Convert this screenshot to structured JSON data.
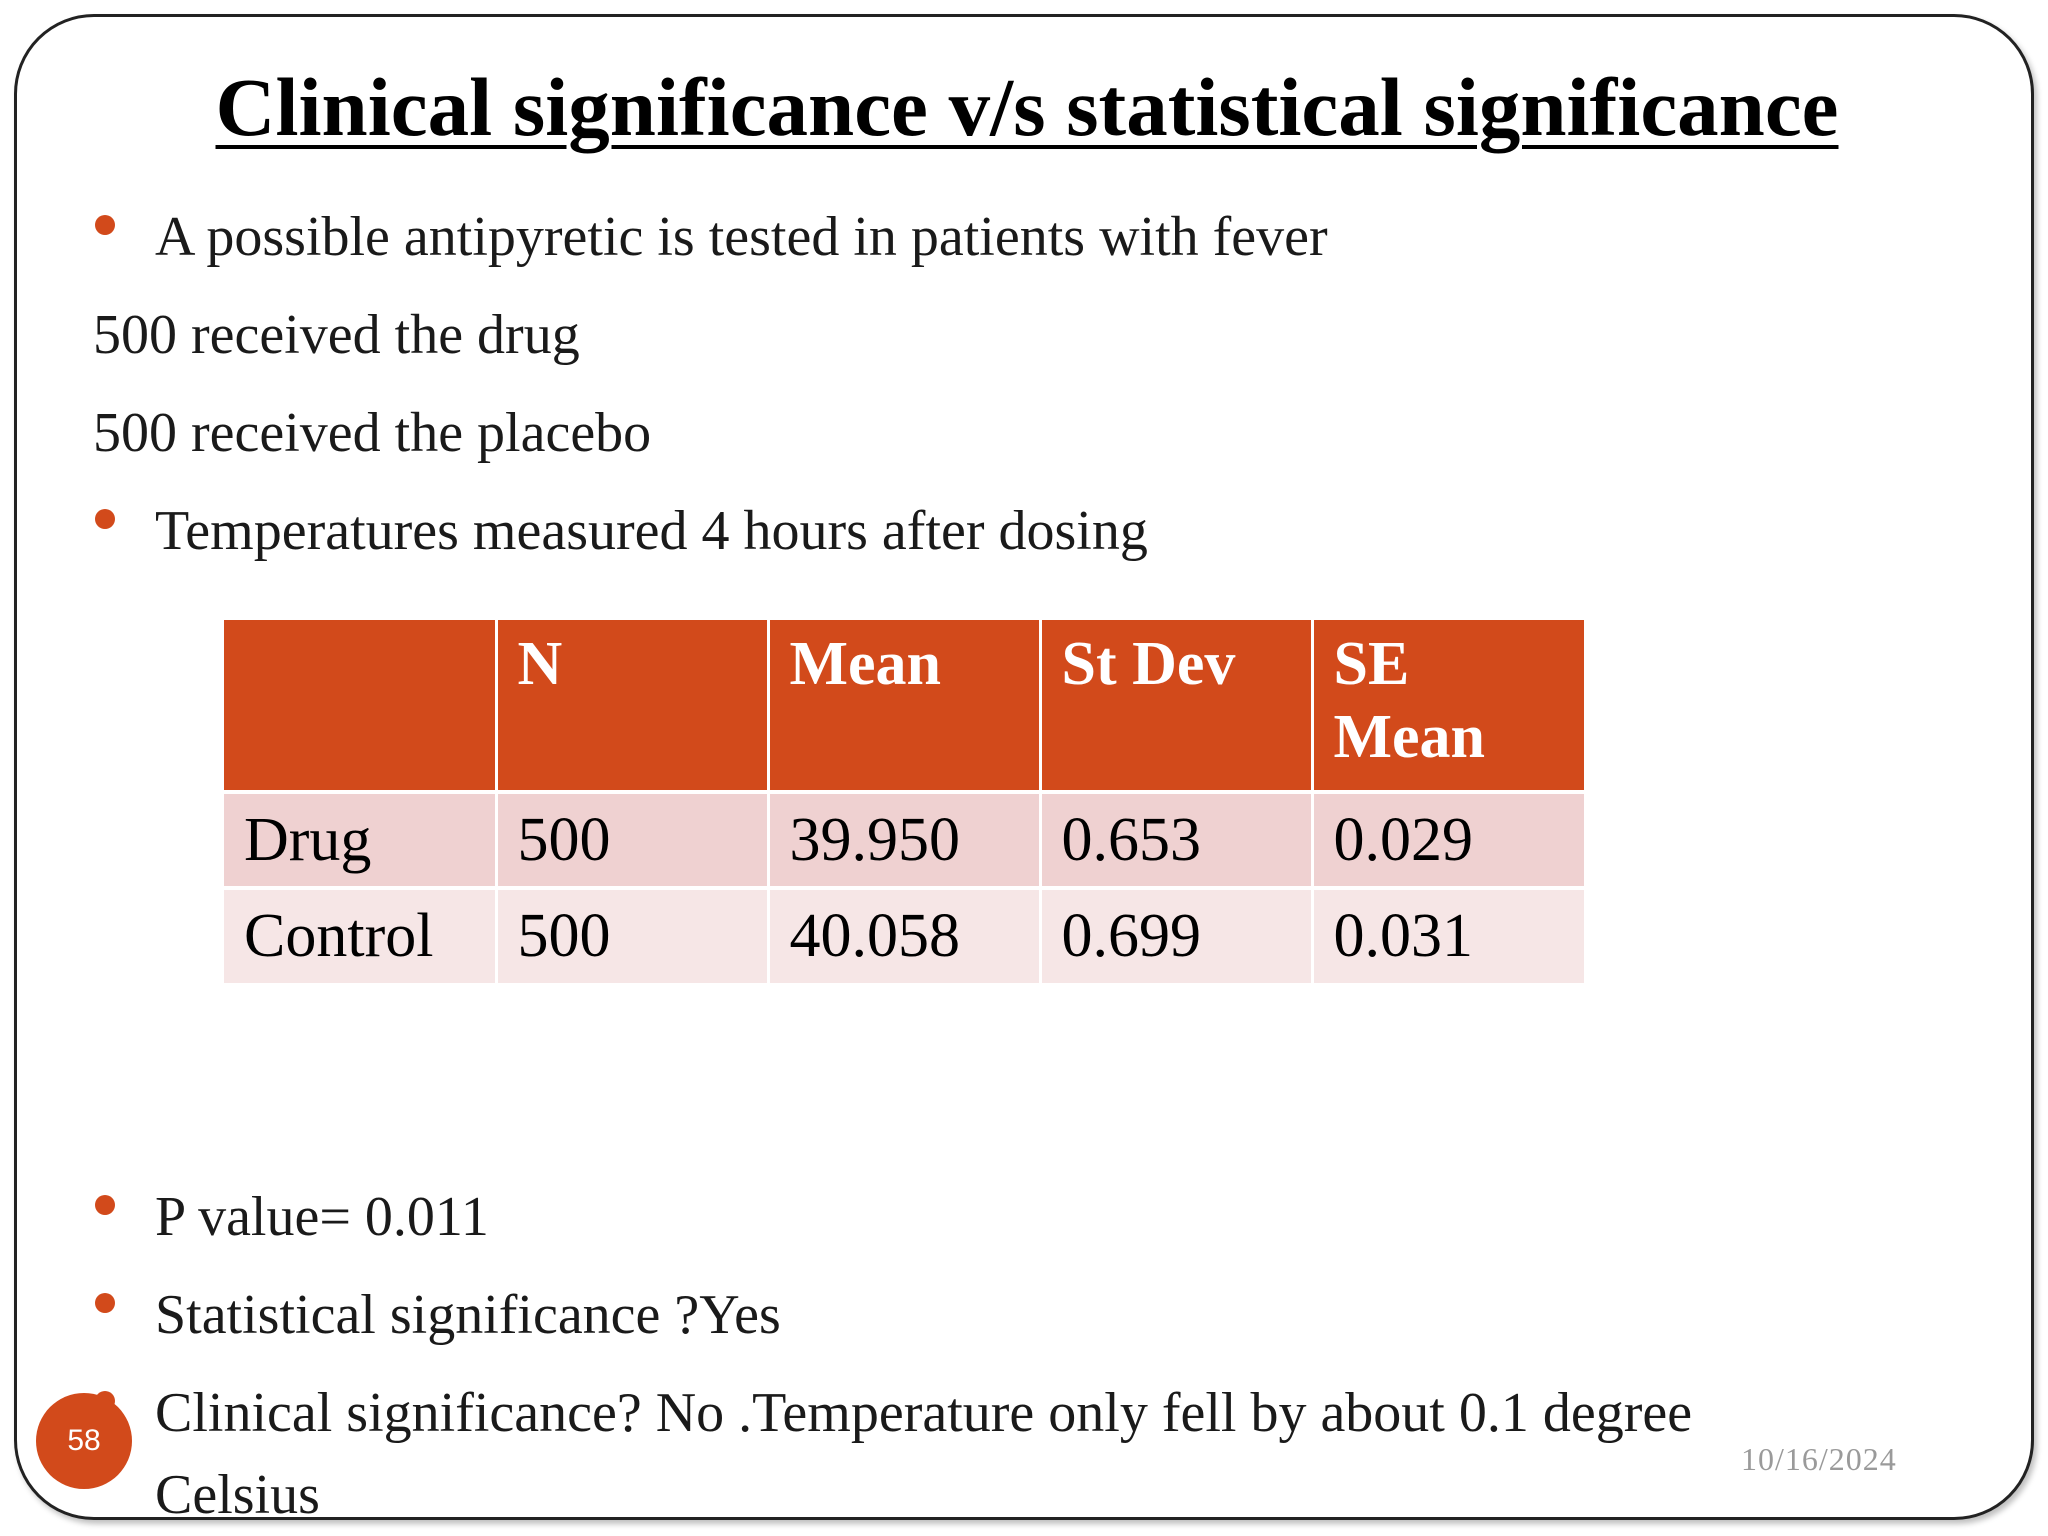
{
  "slide": {
    "title": "Clinical significance v/s statistical significance",
    "lines": [
      "A possible antipyretic is tested in patients with fever",
      "500 received the drug",
      "500 received the placebo",
      "Temperatures measured 4 hours after dosing"
    ],
    "table": {
      "headers": [
        "",
        "N",
        "Mean",
        "St Dev",
        "SE Mean"
      ],
      "rows": [
        [
          "Drug",
          "500",
          "39.950",
          "0.653",
          "0.029"
        ],
        [
          "Control",
          "500",
          "40.058",
          "0.699",
          "0.031"
        ]
      ]
    },
    "bottom_lines": [
      "P value= 0.011",
      "Statistical significance ?Yes",
      "Clinical significance? No .Temperature only fell by about 0.1 degree",
      "Celsius"
    ],
    "page_number": "58",
    "date": "10/16/2024"
  },
  "colors": {
    "accent": "#d24a1b",
    "row_odd": "#efd1d1",
    "row_even": "#f6e6e6"
  }
}
